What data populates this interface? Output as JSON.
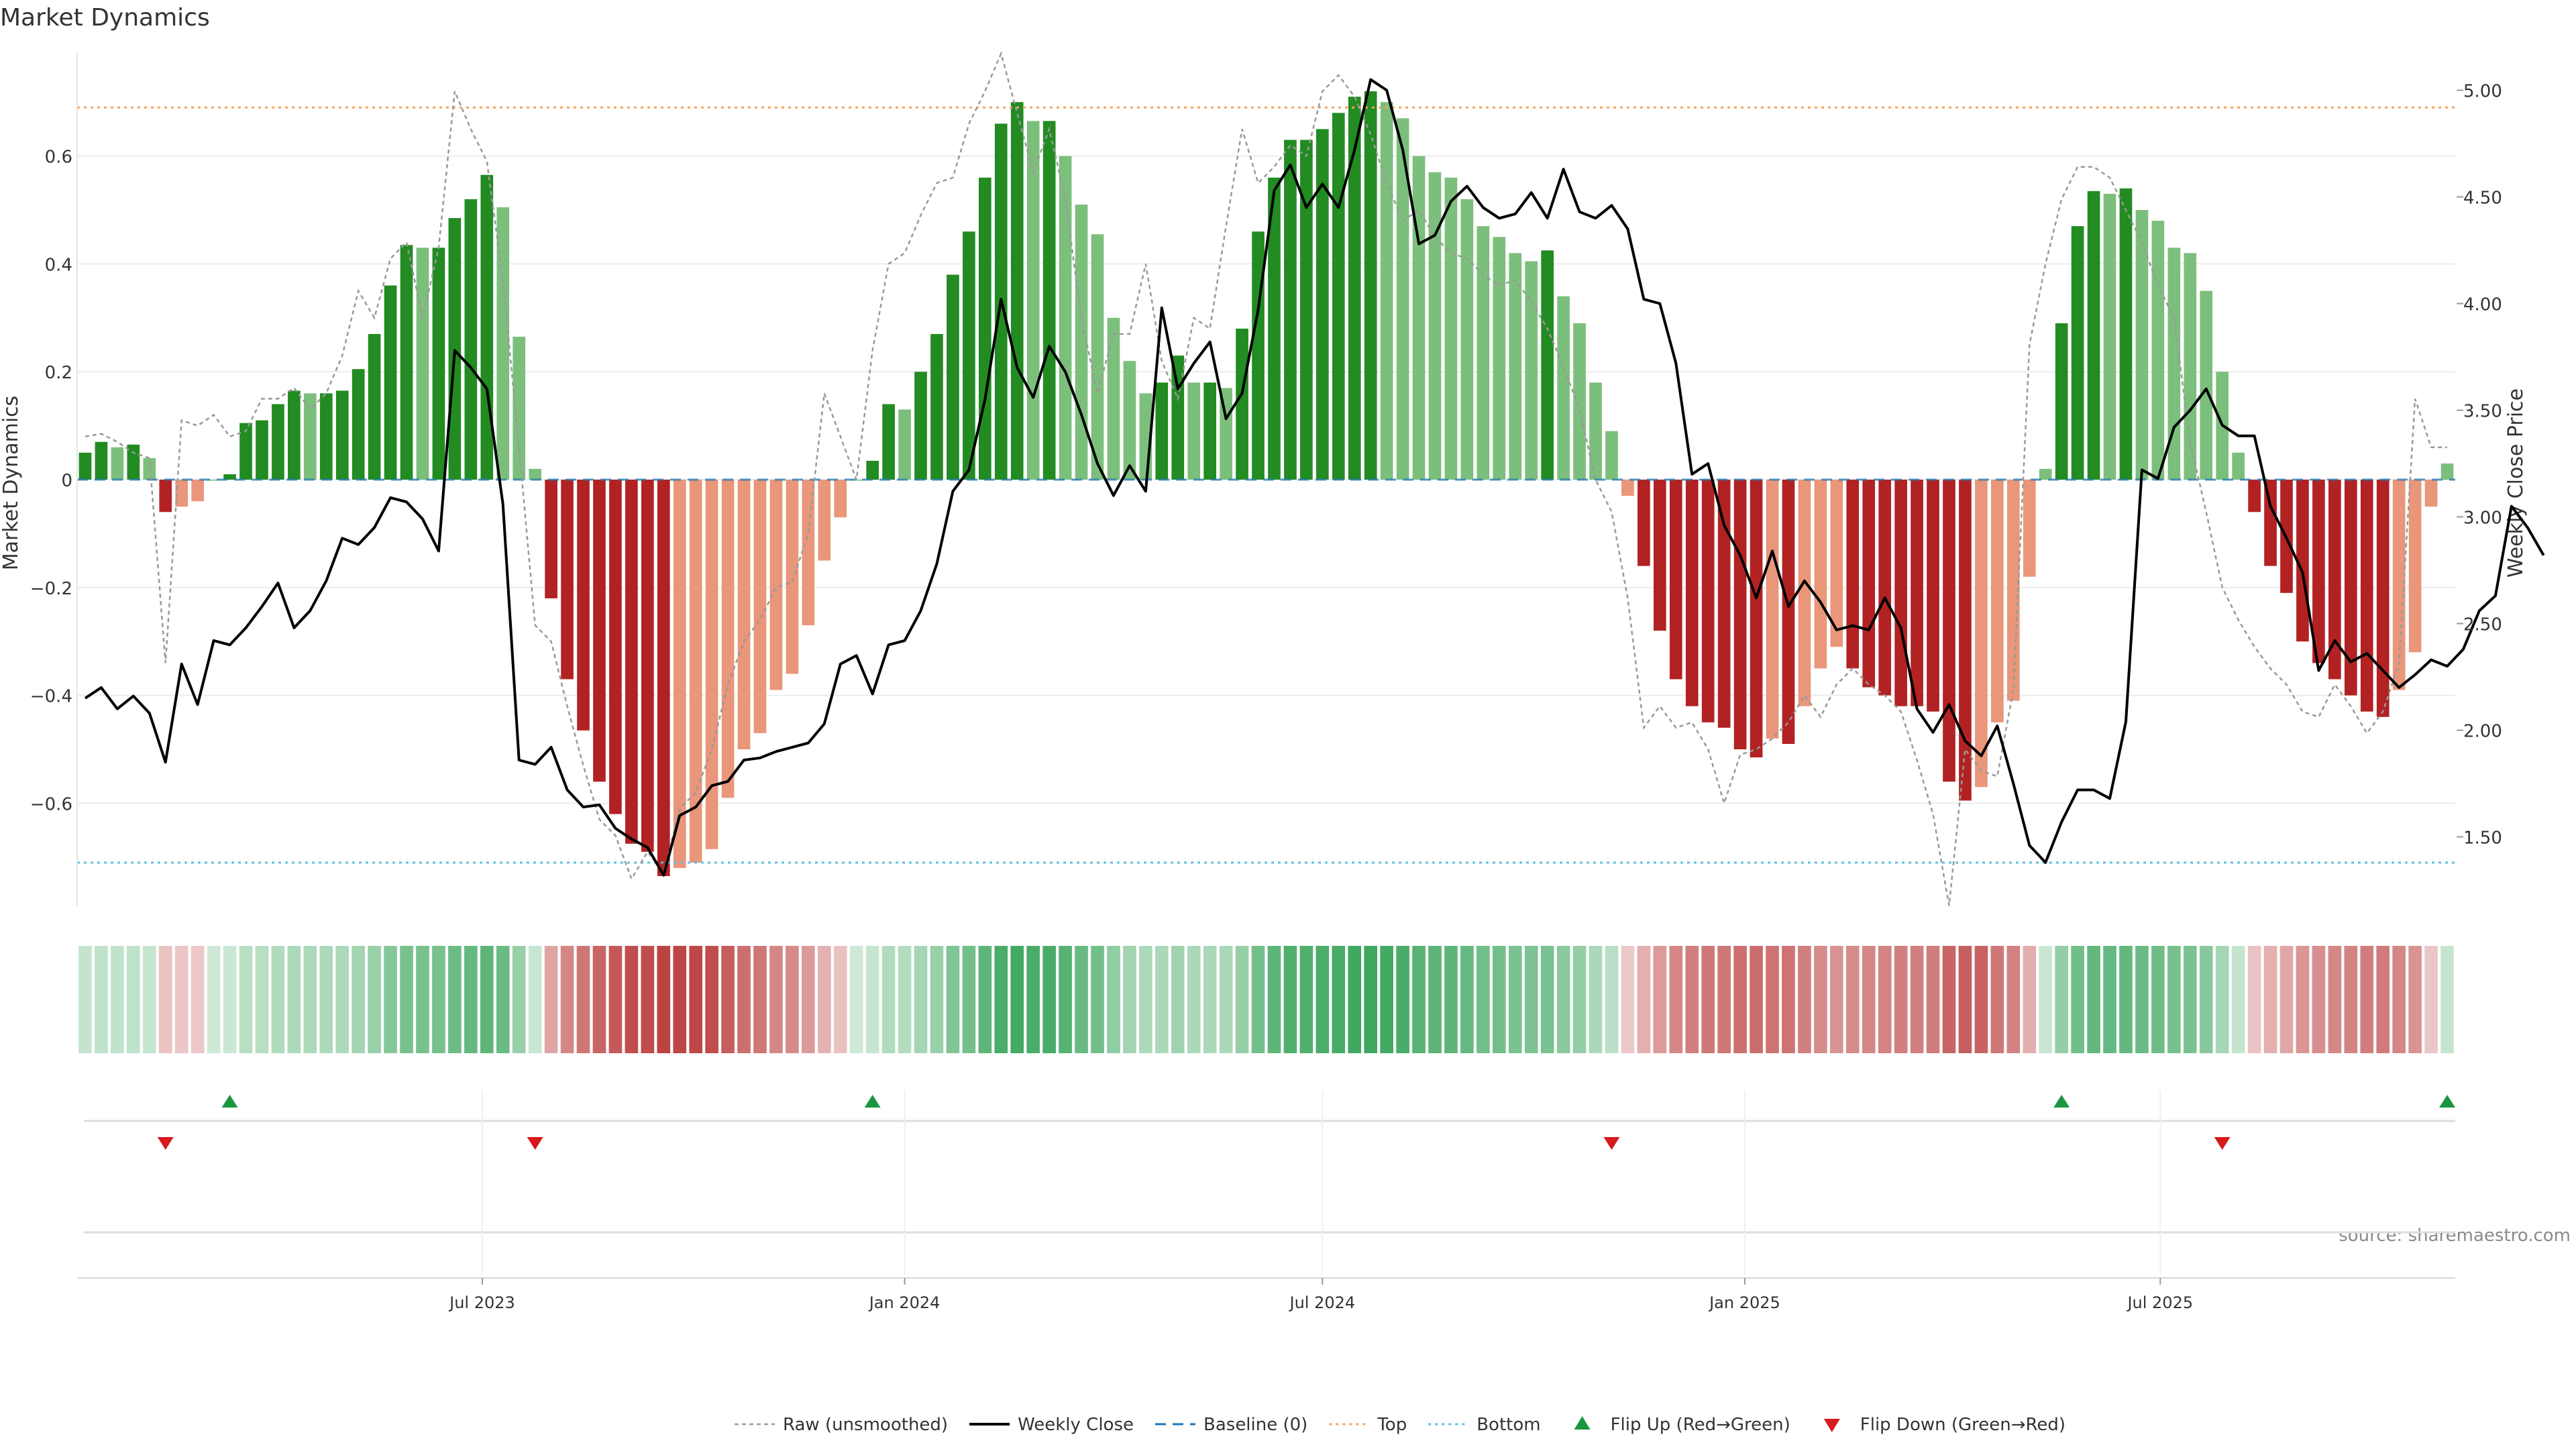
{
  "chart_data": {
    "type": "bar",
    "title": "Market Dynamics",
    "ylabel_left": "Market Dynamics",
    "ylabel_right": "Weekly Close Price",
    "ylim_left": [
      -0.8,
      0.8
    ],
    "ylim_right": [
      1.2,
      5.2
    ],
    "yticks_left": [
      "−0.6",
      "−0.4",
      "−0.2",
      "0",
      "0.2",
      "0.4",
      "0.6"
    ],
    "yticks_left_values": [
      -0.6,
      -0.4,
      -0.2,
      0,
      0.2,
      0.4,
      0.6
    ],
    "yticks_right": [
      "1.50",
      "2.00",
      "2.50",
      "3.00",
      "3.50",
      "4.00",
      "4.50",
      "5.00"
    ],
    "yticks_right_values": [
      1.5,
      2.0,
      2.5,
      3.0,
      3.5,
      4.0,
      4.5,
      5.0
    ],
    "x_start": "2023-01-09",
    "xticks": [
      {
        "label": "Jul 2023",
        "date": "2023-07-01"
      },
      {
        "label": "Jan 2024",
        "date": "2024-01-01"
      },
      {
        "label": "Jul 2024",
        "date": "2024-07-01"
      },
      {
        "label": "Jan 2025",
        "date": "2025-01-01"
      },
      {
        "label": "Jul 2025",
        "date": "2025-07-01"
      }
    ],
    "top_level": 0.69,
    "bottom_level": -0.71,
    "baseline": 0,
    "bar_values": [
      0.05,
      0.07,
      0.06,
      0.065,
      0.04,
      -0.06,
      -0.05,
      -0.04,
      0.0,
      0.01,
      0.105,
      0.11,
      0.14,
      0.165,
      0.16,
      0.16,
      0.165,
      0.205,
      0.27,
      0.36,
      0.435,
      0.43,
      0.43,
      0.485,
      0.52,
      0.565,
      0.505,
      0.265,
      0.02,
      -0.22,
      -0.37,
      -0.465,
      -0.56,
      -0.62,
      -0.675,
      -0.69,
      -0.735,
      -0.72,
      -0.71,
      -0.685,
      -0.59,
      -0.5,
      -0.47,
      -0.39,
      -0.36,
      -0.27,
      -0.15,
      -0.07,
      0.0,
      0.035,
      0.14,
      0.13,
      0.2,
      0.27,
      0.38,
      0.46,
      0.56,
      0.66,
      0.7,
      0.665,
      0.665,
      0.6,
      0.51,
      0.455,
      0.3,
      0.22,
      0.16,
      0.18,
      0.23,
      0.18,
      0.18,
      0.17,
      0.28,
      0.46,
      0.56,
      0.63,
      0.63,
      0.65,
      0.68,
      0.71,
      0.72,
      0.7,
      0.67,
      0.6,
      0.57,
      0.56,
      0.52,
      0.47,
      0.45,
      0.42,
      0.405,
      0.425,
      0.34,
      0.29,
      0.18,
      0.09,
      -0.03,
      -0.16,
      -0.28,
      -0.37,
      -0.42,
      -0.45,
      -0.46,
      -0.5,
      -0.515,
      -0.48,
      -0.49,
      -0.42,
      -0.35,
      -0.31,
      -0.35,
      -0.385,
      -0.4,
      -0.42,
      -0.42,
      -0.43,
      -0.56,
      -0.595,
      -0.57,
      -0.45,
      -0.41,
      -0.18,
      0.02,
      0.29,
      0.47,
      0.535,
      0.53,
      0.54,
      0.5,
      0.48,
      0.43,
      0.42,
      0.35,
      0.2,
      0.05,
      -0.06,
      -0.16,
      -0.21,
      -0.3,
      -0.34,
      -0.37,
      -0.4,
      -0.43,
      -0.44,
      -0.39,
      -0.32,
      -0.05,
      0.03
    ],
    "close_price": [
      2.15,
      2.2,
      2.1,
      2.16,
      2.08,
      1.85,
      2.31,
      2.12,
      2.42,
      2.4,
      2.48,
      2.58,
      2.69,
      2.48,
      2.56,
      2.7,
      2.9,
      2.87,
      2.95,
      3.09,
      3.07,
      2.99,
      2.84,
      3.78,
      3.7,
      3.6,
      3.06,
      1.86,
      1.84,
      1.92,
      1.72,
      1.64,
      1.65,
      1.54,
      1.49,
      1.45,
      1.32,
      1.6,
      1.64,
      1.74,
      1.76,
      1.86,
      1.87,
      1.9,
      1.92,
      1.94,
      2.03,
      2.31,
      2.35,
      2.17,
      2.4,
      2.42,
      2.56,
      2.78,
      3.12,
      3.22,
      3.55,
      4.02,
      3.7,
      3.56,
      3.8,
      3.68,
      3.48,
      3.25,
      3.1,
      3.24,
      3.12,
      3.98,
      3.6,
      3.72,
      3.82,
      3.46,
      3.58,
      3.97,
      4.53,
      4.65,
      4.45,
      4.56,
      4.45,
      4.72,
      5.05,
      5.0,
      4.72,
      4.28,
      4.32,
      4.48,
      4.55,
      4.45,
      4.4,
      4.42,
      4.52,
      4.4,
      4.63,
      4.43,
      4.4,
      4.46,
      4.35,
      4.02,
      4.0,
      3.72,
      3.2,
      3.25,
      2.96,
      2.82,
      2.62,
      2.84,
      2.58,
      2.7,
      2.6,
      2.47,
      2.49,
      2.47,
      2.62,
      2.48,
      2.1,
      1.99,
      2.12,
      1.95,
      1.88,
      2.02,
      1.75,
      1.46,
      1.38,
      1.57,
      1.72,
      1.72,
      1.68,
      2.04,
      3.22,
      3.18,
      3.42,
      3.5,
      3.6,
      3.43,
      3.38,
      3.38,
      3.05,
      2.9,
      2.74,
      2.28,
      2.42,
      2.32,
      2.36,
      2.28,
      2.2,
      2.26,
      2.33,
      2.3,
      2.38,
      2.56,
      2.63,
      3.05,
      2.95,
      2.82
    ],
    "raw_values": [
      0.08,
      0.085,
      0.07,
      0.05,
      0.04,
      -0.34,
      0.11,
      0.1,
      0.12,
      0.08,
      0.09,
      0.15,
      0.15,
      0.17,
      0.13,
      0.16,
      0.23,
      0.35,
      0.3,
      0.41,
      0.44,
      0.3,
      0.43,
      0.72,
      0.65,
      0.59,
      0.37,
      0.06,
      -0.27,
      -0.3,
      -0.42,
      -0.53,
      -0.63,
      -0.66,
      -0.74,
      -0.69,
      -0.73,
      -0.61,
      -0.58,
      -0.5,
      -0.38,
      -0.3,
      -0.26,
      -0.2,
      -0.19,
      -0.1,
      0.16,
      0.08,
      0.0,
      0.24,
      0.4,
      0.42,
      0.49,
      0.55,
      0.56,
      0.66,
      0.72,
      0.79,
      0.68,
      0.57,
      0.65,
      0.52,
      0.3,
      0.16,
      0.27,
      0.27,
      0.4,
      0.22,
      0.15,
      0.3,
      0.28,
      0.47,
      0.65,
      0.55,
      0.58,
      0.62,
      0.6,
      0.72,
      0.75,
      0.71,
      0.64,
      0.55,
      0.48,
      0.5,
      0.45,
      0.42,
      0.41,
      0.38,
      0.36,
      0.37,
      0.33,
      0.28,
      0.21,
      0.13,
      0.0,
      -0.06,
      -0.22,
      -0.46,
      -0.42,
      -0.46,
      -0.45,
      -0.5,
      -0.6,
      -0.51,
      -0.5,
      -0.48,
      -0.45,
      -0.4,
      -0.44,
      -0.38,
      -0.35,
      -0.38,
      -0.4,
      -0.43,
      -0.52,
      -0.62,
      -0.79,
      -0.5,
      -0.54,
      -0.55,
      -0.39,
      0.25,
      0.4,
      0.52,
      0.58,
      0.58,
      0.56,
      0.5,
      0.44,
      0.36,
      0.3,
      0.07,
      -0.06,
      -0.2,
      -0.26,
      -0.31,
      -0.35,
      -0.38,
      -0.43,
      -0.44,
      -0.38,
      -0.42,
      -0.47,
      -0.43,
      -0.34,
      0.15,
      0.06,
      0.06
    ],
    "flip_up_indices": [
      9,
      49,
      123,
      147
    ],
    "flip_down_indices": [
      5,
      28,
      95,
      133
    ],
    "legend": [
      {
        "label": "Raw (unsmoothed)",
        "key": "raw"
      },
      {
        "label": "Weekly Close",
        "key": "close"
      },
      {
        "label": "Baseline (0)",
        "key": "baseline"
      },
      {
        "label": "Top",
        "key": "top"
      },
      {
        "label": "Bottom",
        "key": "bottom"
      },
      {
        "label": "Flip Up (Red→Green)",
        "key": "flipup"
      },
      {
        "label": "Flip Down (Green→Red)",
        "key": "flipdown"
      }
    ],
    "legend_placement": "bottom-center",
    "source_note": "source: sharemaestro.com",
    "colors": {
      "strong_green": "#228B22",
      "light_green": "#7CBF7C",
      "strong_red": "#B22222",
      "light_red": "#E9967A",
      "close_line": "#000000",
      "raw_line": "#999999",
      "baseline": "#1f77b4",
      "top": "#F4A460",
      "bottom": "#5BC0DE",
      "flip_up": "#1a9641",
      "flip_down": "#d7191c"
    }
  }
}
